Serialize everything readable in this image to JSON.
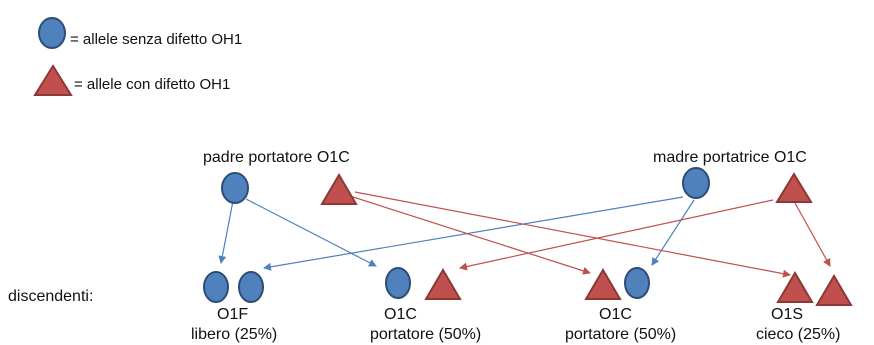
{
  "legend": {
    "circle_text": "= allele senza difetto OH1",
    "triangle_text": "= allele con difetto OH1"
  },
  "parents": {
    "father": "padre portatore O1C",
    "mother": "madre portatrice O1C"
  },
  "offspring_label": "discendenti:",
  "offspring": [
    {
      "code": "O1F",
      "description": "libero (25%)"
    },
    {
      "code": "O1C",
      "description": "portatore  (50%)"
    },
    {
      "code": "O1C",
      "description": "portatore  (50%)"
    },
    {
      "code": "O1S",
      "description": "cieco (25%)"
    }
  ],
  "colors": {
    "healthy_allele": "#4f81bd",
    "healthy_stroke": "#2c4d75",
    "defect_allele": "#c0504d",
    "defect_stroke": "#8c3836",
    "healthy_arrow": "#4f81bd",
    "defect_arrow": "#c0504d"
  },
  "icons": {
    "healthy": "circle",
    "defect": "triangle"
  }
}
